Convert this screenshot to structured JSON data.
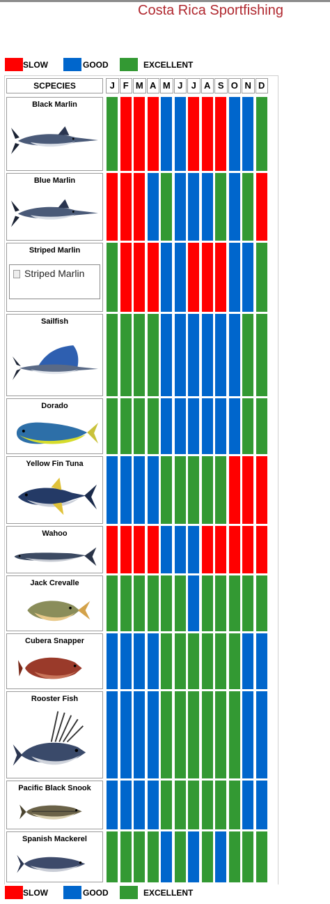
{
  "page": {
    "title": "Costa Rica Sportfishing"
  },
  "legend": [
    {
      "label": "SLOW",
      "color": "#ff0000"
    },
    {
      "label": "GOOD",
      "color": "#0066cc"
    },
    {
      "label": "EXCELLENT",
      "color": "#339933"
    }
  ],
  "table": {
    "species_header": "SCPECIES",
    "months": [
      "J",
      "F",
      "M",
      "A",
      "M",
      "J",
      "J",
      "A",
      "S",
      "O",
      "N",
      "D"
    ],
    "broken_image_text": "Striped Marlin"
  },
  "chart_data": {
    "type": "table",
    "categories": [
      "J",
      "F",
      "M",
      "A",
      "M",
      "J",
      "J",
      "A",
      "S",
      "O",
      "N",
      "D"
    ],
    "rating_scale": {
      "S": "SLOW",
      "G": "GOOD",
      "E": "EXCELLENT"
    },
    "series": [
      {
        "name": "Black Marlin",
        "values": [
          "E",
          "S",
          "S",
          "S",
          "G",
          "G",
          "S",
          "S",
          "S",
          "G",
          "G",
          "E"
        ]
      },
      {
        "name": "Blue Marlin",
        "values": [
          "S",
          "S",
          "S",
          "G",
          "E",
          "G",
          "G",
          "G",
          "E",
          "G",
          "E",
          "S"
        ]
      },
      {
        "name": "Striped Marlin",
        "values": [
          "E",
          "S",
          "S",
          "S",
          "G",
          "G",
          "S",
          "S",
          "S",
          "G",
          "G",
          "E"
        ]
      },
      {
        "name": "Sailfish",
        "values": [
          "E",
          "E",
          "E",
          "E",
          "G",
          "G",
          "G",
          "G",
          "G",
          "G",
          "E",
          "E"
        ]
      },
      {
        "name": "Dorado",
        "values": [
          "E",
          "E",
          "E",
          "E",
          "G",
          "G",
          "G",
          "G",
          "G",
          "G",
          "E",
          "E"
        ]
      },
      {
        "name": "Yellow Fin Tuna",
        "values": [
          "G",
          "G",
          "G",
          "G",
          "E",
          "E",
          "E",
          "E",
          "E",
          "S",
          "S",
          "S"
        ]
      },
      {
        "name": "Wahoo",
        "values": [
          "S",
          "S",
          "S",
          "S",
          "G",
          "G",
          "G",
          "S",
          "S",
          "S",
          "S",
          "S"
        ]
      },
      {
        "name": "Jack Crevalle",
        "values": [
          "E",
          "E",
          "E",
          "E",
          "E",
          "E",
          "G",
          "E",
          "E",
          "E",
          "E",
          "E"
        ]
      },
      {
        "name": "Cubera Snapper",
        "values": [
          "G",
          "G",
          "G",
          "G",
          "E",
          "E",
          "E",
          "E",
          "E",
          "E",
          "G",
          "G"
        ]
      },
      {
        "name": "Rooster Fish",
        "values": [
          "G",
          "G",
          "G",
          "G",
          "E",
          "E",
          "E",
          "E",
          "E",
          "E",
          "G",
          "G"
        ]
      },
      {
        "name": "Pacific Black Snook",
        "values": [
          "G",
          "G",
          "G",
          "G",
          "E",
          "E",
          "E",
          "E",
          "E",
          "E",
          "G",
          "G"
        ]
      },
      {
        "name": "Spanish Mackerel",
        "values": [
          "E",
          "E",
          "E",
          "E",
          "G",
          "E",
          "G",
          "E",
          "G",
          "E",
          "E",
          "E"
        ]
      }
    ]
  }
}
